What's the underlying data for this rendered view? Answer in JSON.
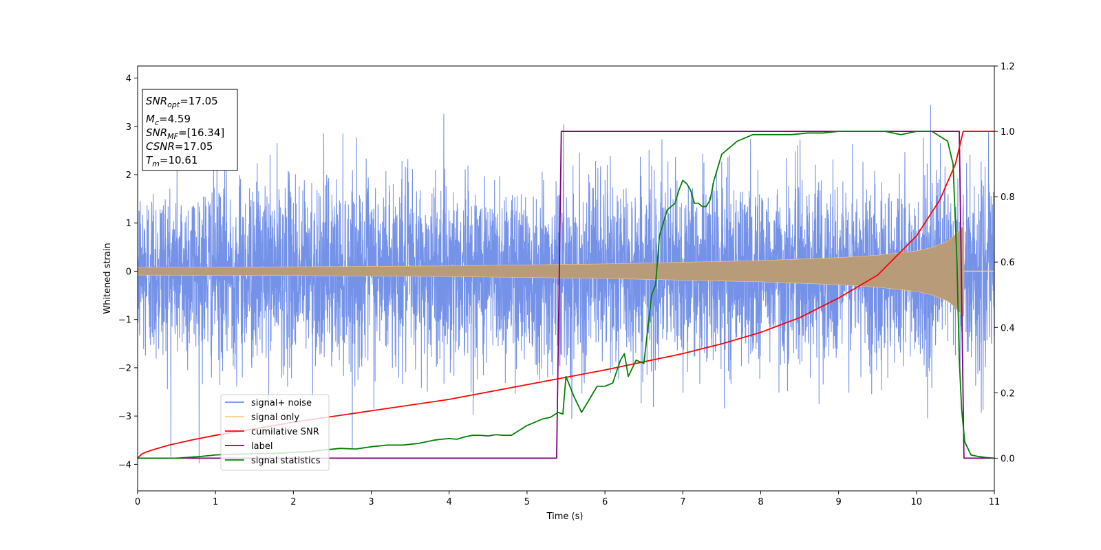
{
  "chart_data": {
    "type": "line",
    "xlabel": "Time (s)",
    "ylabel": "Whitened strain",
    "xlim": [
      0,
      11
    ],
    "ylim": [
      -4.55,
      4.25
    ],
    "y2lim": [
      -0.1,
      1.2
    ],
    "x_ticks": [
      0,
      1,
      2,
      3,
      4,
      5,
      6,
      7,
      8,
      9,
      10,
      11
    ],
    "y_ticks": [
      -4,
      -3,
      -2,
      -1,
      0,
      1,
      2,
      3,
      4
    ],
    "y2_ticks": [
      0.0,
      0.2,
      0.4,
      0.6,
      0.8,
      1.0,
      1.2
    ],
    "y2_tick_labels": [
      "0.0",
      "0.2",
      "0.4",
      "0.6",
      "0.8",
      "1.0",
      "1.2"
    ],
    "grid": false,
    "legend_position": "lower-left",
    "annotation_box": {
      "snr_opt_base": "SNR",
      "snr_opt_sub": "opt",
      "snr_opt_value": "=17.05",
      "mc_base": "M",
      "mc_sub": "c",
      "mc_value": "=4.59",
      "snr_mf_base": "SNR",
      "snr_mf_sub": "MF",
      "snr_mf_value": "=[16.34]",
      "csnr_base": "CSNR",
      "csnr_value": "=17.05",
      "tm_base": "T",
      "tm_sub": "m",
      "tm_value": "=10.61"
    },
    "series": [
      {
        "name": "signal+ noise",
        "color": "#6e8ce8",
        "axis": "left",
        "description": "white noise, std ~0.95 with spikes to ~3.9, t=0..11"
      },
      {
        "name": "signal only",
        "color": "#ffcc80",
        "axis": "left",
        "envelope": {
          "t": [
            0,
            2,
            4,
            6,
            8,
            9,
            9.5,
            10,
            10.2,
            10.4,
            10.5,
            10.55,
            10.61
          ],
          "amp": [
            0.08,
            0.09,
            0.11,
            0.15,
            0.22,
            0.28,
            0.33,
            0.42,
            0.49,
            0.62,
            0.76,
            0.85,
            0.95
          ]
        }
      },
      {
        "name": "cumilative SNR",
        "color": "#ff0000",
        "axis": "right",
        "x": [
          0,
          0.05,
          0.1,
          0.2,
          0.4,
          0.7,
          1,
          1.5,
          2,
          3,
          4,
          5,
          6,
          6.5,
          7,
          7.5,
          8,
          8.5,
          9,
          9.5,
          10,
          10.3,
          10.5,
          10.6,
          11
        ],
        "y": [
          0,
          0.012,
          0.018,
          0.026,
          0.04,
          0.056,
          0.07,
          0.09,
          0.11,
          0.145,
          0.18,
          0.225,
          0.27,
          0.295,
          0.32,
          0.35,
          0.385,
          0.43,
          0.49,
          0.56,
          0.68,
          0.79,
          0.9,
          1.0,
          1.0
        ]
      },
      {
        "name": "label",
        "color": "#800080",
        "axis": "right",
        "x": [
          0,
          5.38,
          5.44,
          10.55,
          10.61,
          11
        ],
        "y": [
          0,
          0,
          1,
          1,
          0,
          0
        ]
      },
      {
        "name": "signal statistics",
        "color": "#008000",
        "axis": "right",
        "x": [
          0,
          0.5,
          0.8,
          1,
          1.2,
          1.4,
          1.6,
          1.8,
          2,
          2.2,
          2.4,
          2.6,
          2.8,
          3,
          3.2,
          3.4,
          3.6,
          3.8,
          3.9,
          4,
          4.1,
          4.2,
          4.3,
          4.4,
          4.5,
          4.6,
          4.7,
          4.8,
          4.9,
          5,
          5.1,
          5.2,
          5.3,
          5.4,
          5.46,
          5.5,
          5.6,
          5.7,
          5.8,
          5.9,
          6,
          6.1,
          6.2,
          6.25,
          6.3,
          6.4,
          6.5,
          6.6,
          6.65,
          6.7,
          6.8,
          6.9,
          6.95,
          7,
          7.05,
          7.1,
          7.15,
          7.2,
          7.25,
          7.3,
          7.35,
          7.4,
          7.5,
          7.6,
          7.7,
          7.8,
          7.9,
          8,
          8.2,
          8.4,
          8.6,
          8.8,
          9,
          9.2,
          9.4,
          9.6,
          9.8,
          10,
          10.2,
          10.4,
          10.47,
          10.52,
          10.55,
          10.58,
          10.62,
          10.7,
          10.8,
          10.9,
          11
        ],
        "y": [
          0,
          0,
          0.005,
          0.01,
          0.012,
          0.013,
          0.014,
          0.015,
          0.018,
          0.02,
          0.025,
          0.03,
          0.028,
          0.035,
          0.04,
          0.04,
          0.045,
          0.055,
          0.058,
          0.06,
          0.058,
          0.065,
          0.07,
          0.07,
          0.068,
          0.072,
          0.07,
          0.07,
          0.085,
          0.1,
          0.11,
          0.12,
          0.125,
          0.14,
          0.135,
          0.25,
          0.19,
          0.14,
          0.18,
          0.22,
          0.22,
          0.23,
          0.3,
          0.32,
          0.25,
          0.3,
          0.29,
          0.5,
          0.53,
          0.68,
          0.76,
          0.78,
          0.82,
          0.85,
          0.84,
          0.82,
          0.78,
          0.78,
          0.77,
          0.77,
          0.79,
          0.85,
          0.93,
          0.95,
          0.97,
          0.98,
          0.99,
          0.99,
          0.99,
          0.99,
          0.995,
          0.995,
          1.0,
          1.0,
          1.0,
          1.0,
          0.99,
          1.0,
          1.0,
          0.97,
          0.9,
          0.6,
          0.3,
          0.15,
          0.05,
          0.01,
          0.005,
          0.002,
          0.0
        ]
      }
    ]
  }
}
